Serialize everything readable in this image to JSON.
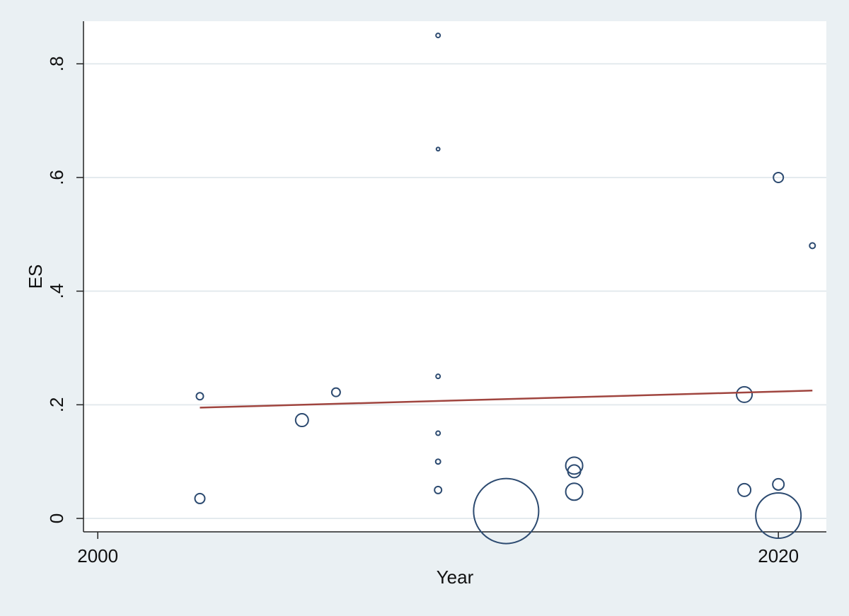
{
  "chart_data": {
    "type": "scatter",
    "x_label": "Year",
    "y_label": "ES",
    "x": [
      2003,
      2003,
      2006,
      2007,
      2010,
      2010,
      2010,
      2010,
      2010,
      2010,
      2012,
      2014,
      2014,
      2014,
      2019,
      2019,
      2020,
      2020,
      2020,
      2021
    ],
    "values": [
      0.215,
      0.035,
      0.173,
      0.222,
      0.85,
      0.65,
      0.25,
      0.15,
      0.1,
      0.05,
      0.013,
      0.093,
      0.083,
      0.047,
      0.218,
      0.05,
      0.6,
      0.06,
      0.005,
      0.48
    ],
    "sizes": [
      25,
      49,
      81,
      36,
      9,
      6,
      9,
      9,
      12,
      25,
      2116,
      144,
      81,
      144,
      121,
      81,
      49,
      64,
      1024,
      16
    ],
    "color": "#2c4a70",
    "fit_line": {
      "x": [
        2003,
        2021
      ],
      "values": [
        0.195,
        0.225
      ],
      "color": "#a0453f"
    },
    "xlim": [
      1999.58,
      2021.41
    ],
    "ylim": [
      -0.0236,
      0.875
    ],
    "xticks": [
      2000,
      2020
    ],
    "yticks": [
      0,
      {
        "value": 0.2,
        "label": ".2"
      },
      {
        "value": 0.4,
        "label": ".4"
      },
      {
        "value": 0.6,
        "label": ".6"
      },
      {
        "value": 0.8,
        "label": ".8"
      }
    ],
    "grid": true
  }
}
